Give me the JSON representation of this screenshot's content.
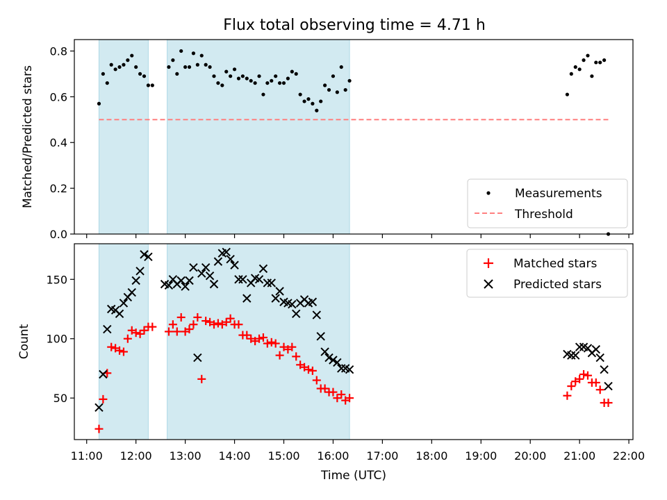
{
  "chart_data": [
    {
      "type": "scatter",
      "title": "Flux total observing time = 4.71 h",
      "ylabel": "Matched/Predicted stars",
      "xlabel": "",
      "ylim": [
        0,
        0.85
      ],
      "yticks": [
        0.0,
        0.2,
        0.4,
        0.6,
        0.8
      ],
      "ytick_labels": [
        "0.0",
        "0.2",
        "0.4",
        "0.6",
        "0.8"
      ],
      "grid": false,
      "legend_position": "lower-right",
      "shaded_intervals": [
        [
          "11:15",
          "12:15"
        ],
        [
          "12:38",
          "16:20"
        ]
      ],
      "shade_color": "#add8e6",
      "threshold": {
        "name": "Threshold",
        "value": 0.5,
        "x_range": [
          "11:15",
          "21:35"
        ],
        "color": "#ff7f7f"
      },
      "series": [
        {
          "name": "Measurements",
          "color": "#000000",
          "points": [
            [
              "11:15",
              0.57
            ],
            [
              "11:20",
              0.7
            ],
            [
              "11:25",
              0.66
            ],
            [
              "11:30",
              0.74
            ],
            [
              "11:35",
              0.72
            ],
            [
              "11:40",
              0.73
            ],
            [
              "11:45",
              0.74
            ],
            [
              "11:50",
              0.76
            ],
            [
              "11:55",
              0.78
            ],
            [
              "12:00",
              0.73
            ],
            [
              "12:05",
              0.7
            ],
            [
              "12:10",
              0.69
            ],
            [
              "12:15",
              0.65
            ],
            [
              "12:20",
              0.65
            ],
            [
              "12:40",
              0.73
            ],
            [
              "12:45",
              0.76
            ],
            [
              "12:50",
              0.7
            ],
            [
              "12:55",
              0.8
            ],
            [
              "13:00",
              0.73
            ],
            [
              "13:05",
              0.73
            ],
            [
              "13:10",
              0.79
            ],
            [
              "13:15",
              0.74
            ],
            [
              "13:20",
              0.78
            ],
            [
              "13:25",
              0.74
            ],
            [
              "13:30",
              0.73
            ],
            [
              "13:35",
              0.69
            ],
            [
              "13:40",
              0.66
            ],
            [
              "13:45",
              0.65
            ],
            [
              "13:50",
              0.71
            ],
            [
              "13:55",
              0.69
            ],
            [
              "14:00",
              0.72
            ],
            [
              "14:05",
              0.68
            ],
            [
              "14:10",
              0.69
            ],
            [
              "14:15",
              0.68
            ],
            [
              "14:20",
              0.67
            ],
            [
              "14:25",
              0.66
            ],
            [
              "14:30",
              0.69
            ],
            [
              "14:35",
              0.61
            ],
            [
              "14:40",
              0.66
            ],
            [
              "14:45",
              0.67
            ],
            [
              "14:50",
              0.69
            ],
            [
              "14:55",
              0.66
            ],
            [
              "15:00",
              0.66
            ],
            [
              "15:05",
              0.68
            ],
            [
              "15:10",
              0.71
            ],
            [
              "15:15",
              0.7
            ],
            [
              "15:20",
              0.61
            ],
            [
              "15:25",
              0.58
            ],
            [
              "15:30",
              0.59
            ],
            [
              "15:35",
              0.57
            ],
            [
              "15:40",
              0.54
            ],
            [
              "15:45",
              0.58
            ],
            [
              "15:50",
              0.65
            ],
            [
              "15:55",
              0.63
            ],
            [
              "16:00",
              0.69
            ],
            [
              "16:05",
              0.62
            ],
            [
              "16:10",
              0.73
            ],
            [
              "16:15",
              0.63
            ],
            [
              "16:20",
              0.67
            ],
            [
              "20:45",
              0.61
            ],
            [
              "20:50",
              0.7
            ],
            [
              "20:55",
              0.73
            ],
            [
              "21:00",
              0.72
            ],
            [
              "21:05",
              0.76
            ],
            [
              "21:10",
              0.78
            ],
            [
              "21:15",
              0.69
            ],
            [
              "21:20",
              0.75
            ],
            [
              "21:25",
              0.75
            ],
            [
              "21:30",
              0.76
            ],
            [
              "21:35",
              0.0
            ]
          ]
        }
      ]
    },
    {
      "type": "scatter",
      "title": "",
      "ylabel": "Count",
      "xlabel": "Time (UTC)",
      "ylim": [
        15,
        180
      ],
      "yticks": [
        50,
        100,
        150
      ],
      "ytick_labels": [
        "50",
        "100",
        "150"
      ],
      "xlim": [
        "10:45",
        "22:05"
      ],
      "xticks": [
        "11:00",
        "12:00",
        "13:00",
        "14:00",
        "15:00",
        "16:00",
        "17:00",
        "18:00",
        "19:00",
        "20:00",
        "21:00",
        "22:00"
      ],
      "grid": false,
      "legend_position": "upper-right",
      "shaded_intervals": [
        [
          "11:15",
          "12:15"
        ],
        [
          "12:38",
          "16:20"
        ]
      ],
      "shade_color": "#add8e6",
      "series": [
        {
          "name": "Matched stars",
          "marker": "+",
          "color": "#ff0000",
          "points": [
            [
              "11:15",
              24
            ],
            [
              "11:20",
              49
            ],
            [
              "11:25",
              71
            ],
            [
              "11:30",
              93
            ],
            [
              "11:35",
              92
            ],
            [
              "11:40",
              90
            ],
            [
              "11:45",
              89
            ],
            [
              "11:50",
              100
            ],
            [
              "11:55",
              107
            ],
            [
              "12:00",
              105
            ],
            [
              "12:05",
              104
            ],
            [
              "12:10",
              107
            ],
            [
              "12:15",
              110
            ],
            [
              "12:20",
              110
            ],
            [
              "12:40",
              106
            ],
            [
              "12:45",
              112
            ],
            [
              "12:50",
              106
            ],
            [
              "12:55",
              118
            ],
            [
              "13:00",
              106
            ],
            [
              "13:05",
              108
            ],
            [
              "13:10",
              112
            ],
            [
              "13:15",
              118
            ],
            [
              "13:20",
              66
            ],
            [
              "13:25",
              115
            ],
            [
              "13:30",
              114
            ],
            [
              "13:35",
              112
            ],
            [
              "13:40",
              113
            ],
            [
              "13:45",
              112
            ],
            [
              "13:50",
              114
            ],
            [
              "13:55",
              117
            ],
            [
              "14:00",
              112
            ],
            [
              "14:05",
              112
            ],
            [
              "14:10",
              103
            ],
            [
              "14:15",
              103
            ],
            [
              "14:20",
              100
            ],
            [
              "14:25",
              98
            ],
            [
              "14:30",
              100
            ],
            [
              "14:35",
              101
            ],
            [
              "14:40",
              96
            ],
            [
              "14:45",
              97
            ],
            [
              "14:50",
              96
            ],
            [
              "14:55",
              86
            ],
            [
              "15:00",
              93
            ],
            [
              "15:05",
              91
            ],
            [
              "15:10",
              93
            ],
            [
              "15:15",
              85
            ],
            [
              "15:20",
              78
            ],
            [
              "15:25",
              76
            ],
            [
              "15:30",
              74
            ],
            [
              "15:35",
              73
            ],
            [
              "15:40",
              65
            ],
            [
              "15:45",
              58
            ],
            [
              "15:50",
              58
            ],
            [
              "15:55",
              55
            ],
            [
              "16:00",
              55
            ],
            [
              "16:05",
              50
            ],
            [
              "16:10",
              53
            ],
            [
              "16:15",
              48
            ],
            [
              "16:20",
              50
            ],
            [
              "20:45",
              52
            ],
            [
              "20:50",
              60
            ],
            [
              "20:55",
              64
            ],
            [
              "21:00",
              66
            ],
            [
              "21:05",
              70
            ],
            [
              "21:10",
              69
            ],
            [
              "21:15",
              63
            ],
            [
              "21:20",
              63
            ],
            [
              "21:25",
              57
            ],
            [
              "21:30",
              46
            ],
            [
              "21:35",
              46
            ]
          ]
        },
        {
          "name": "Predicted stars",
          "marker": "x",
          "color": "#000000",
          "points": [
            [
              "11:15",
              42
            ],
            [
              "11:20",
              70
            ],
            [
              "11:25",
              108
            ],
            [
              "11:30",
              125
            ],
            [
              "11:35",
              124
            ],
            [
              "11:40",
              121
            ],
            [
              "11:45",
              130
            ],
            [
              "11:50",
              135
            ],
            [
              "11:55",
              139
            ],
            [
              "12:00",
              149
            ],
            [
              "12:05",
              157
            ],
            [
              "12:10",
              171
            ],
            [
              "12:15",
              169
            ],
            [
              "12:35",
              146
            ],
            [
              "12:40",
              145
            ],
            [
              "12:45",
              150
            ],
            [
              "12:50",
              146
            ],
            [
              "12:55",
              149
            ],
            [
              "13:00",
              144
            ],
            [
              "13:05",
              149
            ],
            [
              "13:10",
              160
            ],
            [
              "13:15",
              84
            ],
            [
              "13:20",
              155
            ],
            [
              "13:25",
              160
            ],
            [
              "13:30",
              153
            ],
            [
              "13:35",
              146
            ],
            [
              "13:40",
              165
            ],
            [
              "13:45",
              172
            ],
            [
              "13:50",
              173
            ],
            [
              "13:55",
              167
            ],
            [
              "14:00",
              162
            ],
            [
              "14:05",
              150
            ],
            [
              "14:10",
              150
            ],
            [
              "14:15",
              134
            ],
            [
              "14:20",
              147
            ],
            [
              "14:25",
              151
            ],
            [
              "14:30",
              150
            ],
            [
              "14:35",
              159
            ],
            [
              "14:40",
              147
            ],
            [
              "14:45",
              147
            ],
            [
              "14:50",
              134
            ],
            [
              "14:55",
              140
            ],
            [
              "15:00",
              131
            ],
            [
              "15:05",
              130
            ],
            [
              "15:10",
              129
            ],
            [
              "15:15",
              121
            ],
            [
              "15:20",
              130
            ],
            [
              "15:25",
              133
            ],
            [
              "15:30",
              130
            ],
            [
              "15:35",
              131
            ],
            [
              "15:40",
              120
            ],
            [
              "15:45",
              102
            ],
            [
              "15:50",
              89
            ],
            [
              "15:55",
              84
            ],
            [
              "16:00",
              82
            ],
            [
              "16:05",
              80
            ],
            [
              "16:10",
              75
            ],
            [
              "16:15",
              75
            ],
            [
              "16:20",
              74
            ],
            [
              "20:45",
              87
            ],
            [
              "20:50",
              86
            ],
            [
              "20:55",
              86
            ],
            [
              "21:00",
              93
            ],
            [
              "21:05",
              93
            ],
            [
              "21:10",
              92
            ],
            [
              "21:15",
              88
            ],
            [
              "21:20",
              91
            ],
            [
              "21:25",
              84
            ],
            [
              "21:30",
              74
            ],
            [
              "21:35",
              60
            ]
          ]
        }
      ]
    }
  ]
}
